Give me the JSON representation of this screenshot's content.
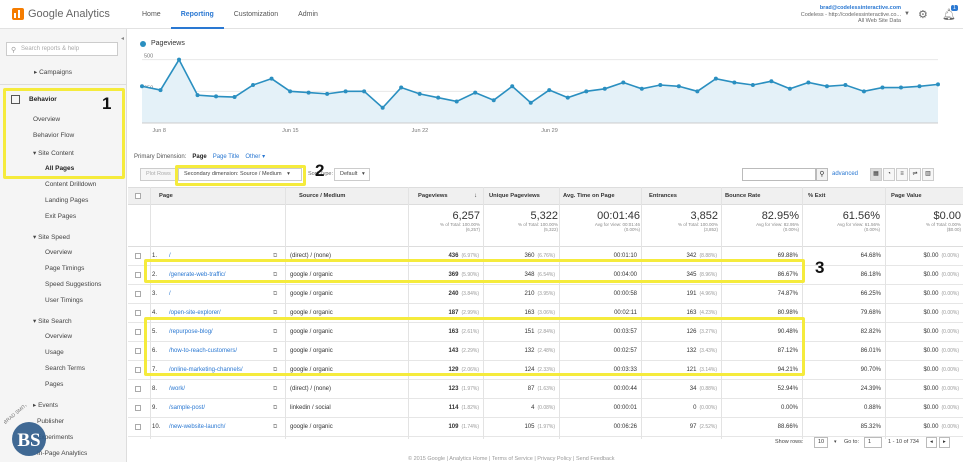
{
  "app": {
    "name": "Google Analytics"
  },
  "nav": [
    "Home",
    "Reporting",
    "Customization",
    "Admin"
  ],
  "account": {
    "email": "brad@codelessinteractive.com",
    "line2": "Codeless - http://codelessinteractive.co...",
    "line3": "All Web Site Data",
    "notif_count": "1"
  },
  "sidebar": {
    "search_placeholder": "Search reports & help",
    "items": {
      "campaigns": "▸ Campaigns",
      "behavior": "Behavior",
      "overview": "Overview",
      "behavior_flow": "Behavior Flow",
      "site_content": "▾ Site Content",
      "all_pages": "All Pages",
      "content_drilldown": "Content Drilldown",
      "landing_pages": "Landing Pages",
      "exit_pages": "Exit Pages",
      "site_speed": "▾ Site Speed",
      "ss_overview": "Overview",
      "page_timings": "Page Timings",
      "speed_suggestions": "Speed Suggestions",
      "user_timings": "User Timings",
      "site_search": "▾ Site Search",
      "sr_overview": "Overview",
      "usage": "Usage",
      "search_terms": "Search Terms",
      "pages": "Pages",
      "events": "▸ Events",
      "publisher": "Publisher",
      "experiments": "Experiments",
      "in_page_analytics": "In-Page Analytics"
    }
  },
  "annotations": [
    "1",
    "2",
    "3"
  ],
  "chart": {
    "legend": "Pageviews"
  },
  "chart_data": {
    "type": "line",
    "series": [
      {
        "name": "Pageviews",
        "values": [
          290,
          260,
          500,
          220,
          210,
          205,
          300,
          350,
          250,
          240,
          230,
          250,
          250,
          120,
          280,
          230,
          200,
          170,
          240,
          180,
          290,
          160,
          260,
          200,
          250,
          270,
          320,
          270,
          300,
          290,
          250,
          350,
          320,
          300,
          330,
          270,
          320,
          290,
          300,
          250,
          280,
          280,
          290,
          305
        ]
      }
    ],
    "yticks": [
      "500",
      "250"
    ],
    "ylim": [
      0,
      600
    ],
    "xticks": [
      "Jun 8",
      "Jun 15",
      "Jun 22",
      "Jun 29"
    ]
  },
  "primary_dimension": {
    "label": "Primary Dimension:",
    "options": [
      "Page",
      "Page Title",
      "Other ▾"
    ]
  },
  "controls": {
    "plot_rows": "Plot Rows",
    "secondary": "Secondary dimension: Source / Medium",
    "sort_type": "Sort Type:",
    "default": "Default",
    "advanced": "advanced"
  },
  "table": {
    "headers": [
      "Page",
      "Source / Medium",
      "Pageviews",
      "Unique Pageviews",
      "Avg. Time on Page",
      "Entrances",
      "Bounce Rate",
      "% Exit",
      "Page Value"
    ],
    "totals": [
      {
        "big": "6,257",
        "sm1": "% of Total: 100.00%",
        "sm2": "(6,257)"
      },
      {
        "big": "5,322",
        "sm1": "% of Total: 100.00%",
        "sm2": "(5,322)"
      },
      {
        "big": "00:01:46",
        "sm1": "Avg for View: 00:01:46",
        "sm2": "(0.00%)"
      },
      {
        "big": "3,852",
        "sm1": "% of Total: 100.00%",
        "sm2": "(3,852)"
      },
      {
        "big": "82.95%",
        "sm1": "Avg for View: 82.95%",
        "sm2": "(0.00%)"
      },
      {
        "big": "61.56%",
        "sm1": "Avg for View: 61.56%",
        "sm2": "(0.00%)"
      },
      {
        "big": "$0.00",
        "sm1": "% of Total: 0.00%",
        "sm2": "($0.00)"
      }
    ],
    "rows": [
      {
        "n": "1.",
        "page": "/",
        "src": "(direct) / (none)",
        "pv": "436",
        "pvp": "(6.97%)",
        "upv": "360",
        "upvp": "(6.76%)",
        "time": "00:01:10",
        "ent": "342",
        "entp": "(8.88%)",
        "br": "69.88%",
        "exit": "64.68%",
        "val": "$0.00",
        "valp": "(0.00%)"
      },
      {
        "n": "2.",
        "page": "/generate-web-traffic/",
        "src": "google / organic",
        "pv": "369",
        "pvp": "(5.90%)",
        "upv": "348",
        "upvp": "(6.54%)",
        "time": "00:04:00",
        "ent": "345",
        "entp": "(8.96%)",
        "br": "86.67%",
        "exit": "86.18%",
        "val": "$0.00",
        "valp": "(0.00%)"
      },
      {
        "n": "3.",
        "page": "/",
        "src": "google / organic",
        "pv": "240",
        "pvp": "(3.84%)",
        "upv": "210",
        "upvp": "(3.95%)",
        "time": "00:00:58",
        "ent": "191",
        "entp": "(4.96%)",
        "br": "74.87%",
        "exit": "66.25%",
        "val": "$0.00",
        "valp": "(0.00%)"
      },
      {
        "n": "4.",
        "page": "/open-site-explorer/",
        "src": "google / organic",
        "pv": "187",
        "pvp": "(2.99%)",
        "upv": "163",
        "upvp": "(3.06%)",
        "time": "00:02:11",
        "ent": "163",
        "entp": "(4.23%)",
        "br": "80.98%",
        "exit": "79.68%",
        "val": "$0.00",
        "valp": "(0.00%)"
      },
      {
        "n": "5.",
        "page": "/repurpose-blog/",
        "src": "google / organic",
        "pv": "163",
        "pvp": "(2.61%)",
        "upv": "151",
        "upvp": "(2.84%)",
        "time": "00:03:57",
        "ent": "126",
        "entp": "(3.27%)",
        "br": "90.48%",
        "exit": "82.82%",
        "val": "$0.00",
        "valp": "(0.00%)"
      },
      {
        "n": "6.",
        "page": "/how-to-reach-customers/",
        "src": "google / organic",
        "pv": "143",
        "pvp": "(2.29%)",
        "upv": "132",
        "upvp": "(2.48%)",
        "time": "00:02:57",
        "ent": "132",
        "entp": "(3.43%)",
        "br": "87.12%",
        "exit": "86.01%",
        "val": "$0.00",
        "valp": "(0.00%)"
      },
      {
        "n": "7.",
        "page": "/online-marketing-channels/",
        "src": "google / organic",
        "pv": "129",
        "pvp": "(2.06%)",
        "upv": "124",
        "upvp": "(2.33%)",
        "time": "00:03:33",
        "ent": "121",
        "entp": "(3.14%)",
        "br": "94.21%",
        "exit": "90.70%",
        "val": "$0.00",
        "valp": "(0.00%)"
      },
      {
        "n": "8.",
        "page": "/work/",
        "src": "(direct) / (none)",
        "pv": "123",
        "pvp": "(1.97%)",
        "upv": "87",
        "upvp": "(1.63%)",
        "time": "00:00:44",
        "ent": "34",
        "entp": "(0.88%)",
        "br": "52.94%",
        "exit": "24.39%",
        "val": "$0.00",
        "valp": "(0.00%)"
      },
      {
        "n": "9.",
        "page": "/sample-post/",
        "src": "linkedin / social",
        "pv": "114",
        "pvp": "(1.82%)",
        "upv": "4",
        "upvp": "(0.08%)",
        "time": "00:00:01",
        "ent": "0",
        "entp": "(0.00%)",
        "br": "0.00%",
        "exit": "0.88%",
        "val": "$0.00",
        "valp": "(0.00%)"
      },
      {
        "n": "10.",
        "page": "/new-website-launch/",
        "src": "google / organic",
        "pv": "109",
        "pvp": "(1.74%)",
        "upv": "105",
        "upvp": "(1.97%)",
        "time": "00:06:26",
        "ent": "97",
        "entp": "(2.52%)",
        "br": "88.66%",
        "exit": "85.32%",
        "val": "$0.00",
        "valp": "(0.00%)"
      }
    ]
  },
  "footer": {
    "show_rows": "Show rows:",
    "rows_value": "10",
    "goto": "Go to:",
    "goto_value": "1",
    "range": "1 - 10 of 734",
    "copyright": "© 2015 Google | Analytics Home | Terms of Service | Privacy Policy | Send Feedback"
  },
  "watermark": {
    "initials": "BS",
    "text": "BRAD SMITH"
  }
}
